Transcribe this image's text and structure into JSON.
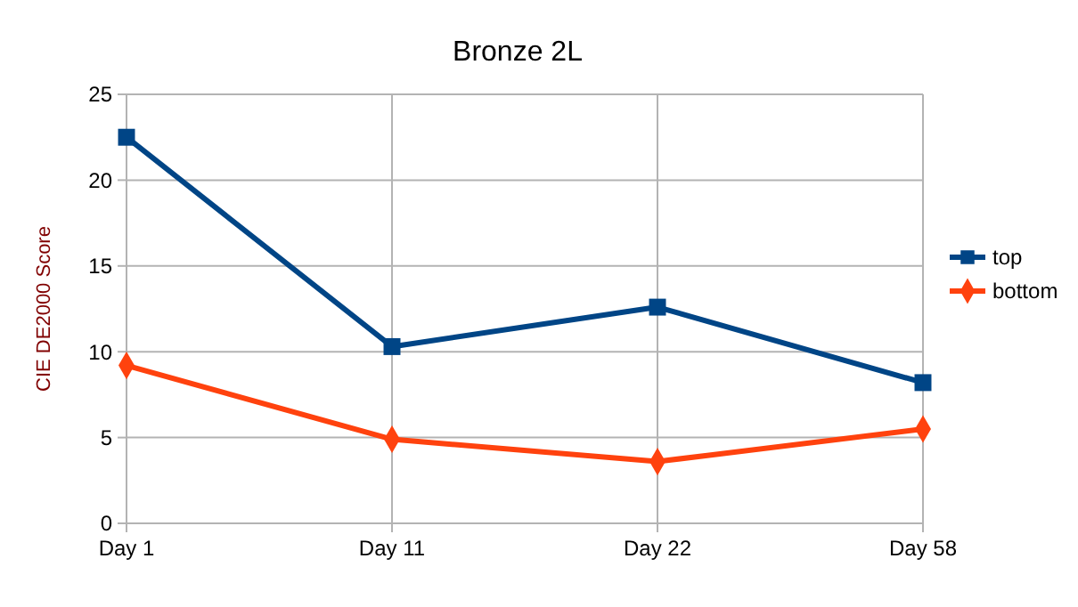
{
  "chart_data": {
    "type": "line",
    "title": "Bronze 2L",
    "ylabel": "CIE DE2000 Score",
    "categories": [
      "Day 1",
      "Day 11",
      "Day 22",
      "Day 58"
    ],
    "series": [
      {
        "name": "top",
        "color": "#004586",
        "marker": "square",
        "values": [
          22.5,
          10.3,
          12.6,
          8.2
        ]
      },
      {
        "name": "bottom",
        "color": "#ff420e",
        "marker": "diamond",
        "values": [
          9.2,
          4.9,
          3.6,
          5.5
        ]
      }
    ],
    "ylim": [
      0,
      25
    ],
    "yticks": [
      0,
      5,
      10,
      15,
      20,
      25
    ],
    "grid": true,
    "legend": "right"
  }
}
